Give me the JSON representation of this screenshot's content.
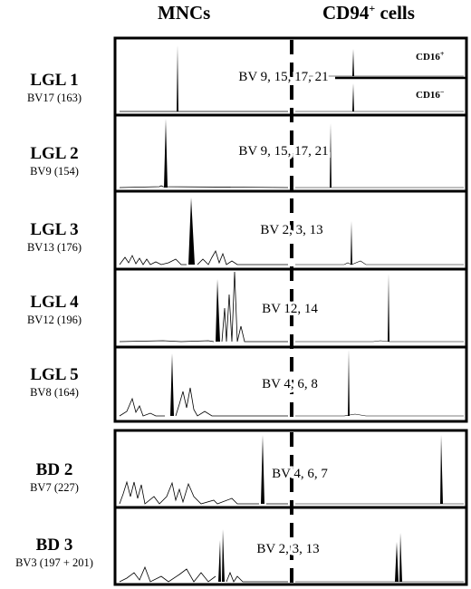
{
  "headers": {
    "mncs": "MNCs",
    "cd94": "CD94",
    "cd94_sup": "+",
    "cells": " cells"
  },
  "cd16_labels": {
    "pos": "CD16",
    "pos_sup": "+",
    "neg": "CD16",
    "neg_sup": "−"
  },
  "rows": [
    {
      "name": "LGL 1",
      "sub": "BV17 (163)",
      "bv": "BV 9, 15, 17, 21"
    },
    {
      "name": "LGL 2",
      "sub": "BV9 (154)",
      "bv": "BV 9, 15, 17, 21"
    },
    {
      "name": "LGL 3",
      "sub": "BV13 (176)",
      "bv": "BV 2, 3, 13"
    },
    {
      "name": "LGL 4",
      "sub": "BV12 (196)",
      "bv": "BV 12, 14"
    },
    {
      "name": "LGL 5",
      "sub": "BV8 (164)",
      "bv": "BV 4, 6, 8"
    },
    {
      "name": "BD 2",
      "sub": "BV7 (227)",
      "bv": "BV 4, 6, 7"
    },
    {
      "name": "BD 3",
      "sub": "BV3 (197 + 201)",
      "bv": "BV 2, 3, 13"
    }
  ]
}
